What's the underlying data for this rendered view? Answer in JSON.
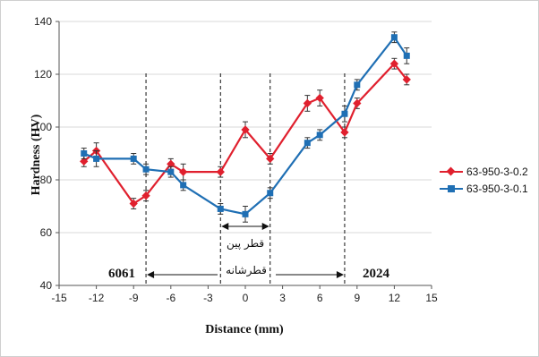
{
  "chart_data": {
    "type": "line",
    "xlabel": "Distance (mm)",
    "ylabel": "Hardness (HV)",
    "xlim": [
      -15,
      15
    ],
    "ylim": [
      40,
      140
    ],
    "xticks": [
      -15,
      -12,
      -9,
      -6,
      -3,
      0,
      3,
      6,
      9,
      12,
      15
    ],
    "yticks": [
      40,
      60,
      80,
      100,
      120,
      140
    ],
    "grid": "horizontal",
    "legend_position": "right",
    "series": [
      {
        "name": "63-950-3-0.2",
        "color": "#e0202e",
        "marker": "diamond",
        "x": [
          -13,
          -12,
          -9,
          -8,
          -6,
          -5,
          -2,
          0,
          2,
          5,
          6,
          8,
          9,
          12,
          13
        ],
        "y": [
          87,
          91,
          71,
          74,
          86,
          83,
          83,
          99,
          88,
          109,
          111,
          98,
          109,
          124,
          118
        ],
        "err": [
          2,
          3,
          2,
          2,
          2,
          3,
          2,
          3,
          2,
          3,
          3,
          2,
          2,
          2,
          2
        ]
      },
      {
        "name": "63-950-3-0.1",
        "color": "#1f6fb4",
        "marker": "square",
        "x": [
          -13,
          -12,
          -9,
          -8,
          -6,
          -5,
          -2,
          0,
          2,
          5,
          6,
          8,
          9,
          12,
          13
        ],
        "y": [
          90,
          88,
          88,
          84,
          83,
          78,
          69,
          67,
          75,
          94,
          97,
          105,
          116,
          134,
          127
        ],
        "err": [
          2,
          3,
          2,
          2,
          2,
          2,
          2,
          3,
          2,
          2,
          2,
          3,
          2,
          2,
          3
        ]
      }
    ],
    "vlines": [
      -8,
      -2,
      2,
      8
    ],
    "annotations": {
      "left_material": "6061",
      "right_material": "2024",
      "pin_diameter": "قطر پین",
      "shoulder_diameter": "قطرشانه"
    }
  }
}
